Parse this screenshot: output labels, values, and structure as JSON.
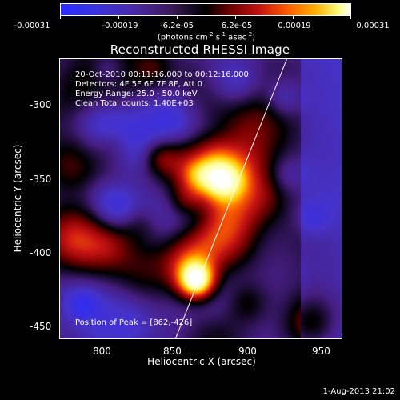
{
  "colorbar": {
    "ticks": [
      "-0.00031",
      "-0.00019",
      "-6.2e-05",
      "6.2e-05",
      "0.00019",
      "0.00031"
    ],
    "units_prefix": "(photons cm",
    "units_exp1": "-2",
    "units_mid": " s",
    "units_exp2": "-1",
    "units_mid2": " asec",
    "units_exp3": "-2",
    "units_suffix": ")"
  },
  "title": "Reconstructed RHESSI Image",
  "info": {
    "line1": "20-Oct-2010 00:11:16.000 to 00:12:16.000",
    "line2": "Detectors: 4F 5F 6F 7F 8F, Att 0",
    "line3": "Energy Range: 25.0 - 50.0 keV",
    "line4": "Clean     Total counts: 1.40E+03"
  },
  "peak_text": "Position of Peak = [862,-426]",
  "axes": {
    "xlabel": "Heliocentric X (arcsec)",
    "ylabel": "Heliocentric Y (arcsec)",
    "xticks": [
      "800",
      "850",
      "900",
      "950"
    ],
    "yticks": [
      "-300",
      "-350",
      "-400",
      "-450"
    ]
  },
  "timestamp": "1-Aug-2013 21:02",
  "colors": {
    "low": "#2a2aff",
    "mid_low": "#4a2aa8",
    "zero": "#000000",
    "mid_high": "#c01010",
    "high": "#ffb000",
    "peak": "#ffffff",
    "limb_line": "#ffffff"
  },
  "chart_data": {
    "type": "heatmap",
    "title": "Reconstructed RHESSI Image",
    "xlabel": "Heliocentric X (arcsec)",
    "ylabel": "Heliocentric Y (arcsec)",
    "xlim": [
      770,
      960
    ],
    "ylim": [
      -465,
      -275
    ],
    "color_range": [
      -0.00031,
      0.00031
    ],
    "peak_position": [
      862,
      -426
    ],
    "limb_line": [
      [
        848,
        -465
      ],
      [
        923,
        -275
      ]
    ]
  }
}
